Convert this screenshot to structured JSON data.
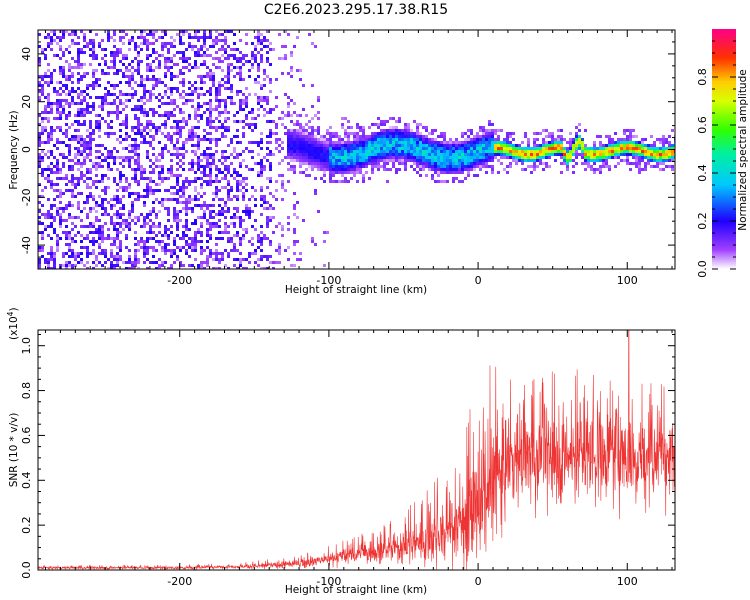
{
  "chart_data": [
    {
      "type": "heatmap",
      "title": "C2E6.2023.295.17.38.R15",
      "xlabel": "Height of straight line (km)",
      "ylabel": "Frequency (Hz)",
      "xlim": [
        -295,
        132
      ],
      "ylim": [
        -50,
        50
      ],
      "x_ticks": [
        -200,
        -100,
        0,
        100
      ],
      "x_tick_labels": [
        "-200",
        "-100",
        "0",
        "100"
      ],
      "y_ticks": [
        -40,
        -20,
        0,
        20,
        40
      ],
      "y_tick_labels": [
        "-40",
        "-20",
        "0",
        "20",
        "40"
      ],
      "colorbar": {
        "label": "Normalized spectral amplitude",
        "range": [
          0.0,
          1.0
        ],
        "ticks": [
          0.0,
          0.2,
          0.4,
          0.6,
          0.8
        ],
        "tick_labels": [
          "0.0",
          "0.2",
          "0.4",
          "0.6",
          "0.8"
        ],
        "colormap": "rainbow (white-violet-blue-cyan-green-yellow-red-magenta)"
      },
      "regions": [
        {
          "x_range": [
            -295,
            -140
          ],
          "frequency_range": [
            -50,
            50
          ],
          "amplitude": 0.1,
          "description": "broadband noise"
        },
        {
          "x_range": [
            -140,
            -100
          ],
          "frequency_range": [
            -50,
            50
          ],
          "amplitude": 0.05,
          "description": "sparse noise"
        },
        {
          "x_range": [
            -130,
            10
          ],
          "center_frequency": 0,
          "bandwidth": 10,
          "amplitude": 0.35
        },
        {
          "x_range": [
            10,
            132
          ],
          "center_frequency": 0,
          "bandwidth": 3,
          "amplitude": 0.9
        }
      ],
      "grid": false
    },
    {
      "type": "line",
      "xlabel": "Height of straight line (km)",
      "ylabel": "SNR (10 * v/v)",
      "y_scale_label": "(x10",
      "y_scale_exponent": "4",
      "y_scale_close": ")",
      "xlim": [
        -295,
        132
      ],
      "ylim": [
        0,
        1.07
      ],
      "x_ticks": [
        -200,
        -100,
        0,
        100
      ],
      "x_tick_labels": [
        "-200",
        "-100",
        "0",
        "100"
      ],
      "y_ticks": [
        0.0,
        0.2,
        0.4,
        0.6,
        0.8,
        1.0
      ],
      "y_tick_labels": [
        "0.0",
        "0.2",
        "0.4",
        "0.6",
        "0.8",
        "1.0"
      ],
      "series": [
        {
          "color": "#ee3333",
          "envelope": {
            "x": [
              -295,
              -200,
              -160,
              -140,
              -120,
              -100,
              -80,
              -60,
              -40,
              -20,
              0,
              10,
              15,
              20,
              30,
              50,
              70,
              90,
              110,
              132
            ],
            "mean": [
              0.01,
              0.01,
              0.015,
              0.02,
              0.03,
              0.05,
              0.07,
              0.09,
              0.12,
              0.18,
              0.28,
              0.35,
              0.42,
              0.5,
              0.5,
              0.52,
              0.5,
              0.52,
              0.5,
              0.5
            ],
            "peak": [
              0.02,
              0.025,
              0.03,
              0.05,
              0.07,
              0.11,
              0.16,
              0.22,
              0.33,
              0.5,
              0.8,
              0.96,
              0.9,
              0.85,
              0.85,
              0.92,
              0.9,
              0.88,
              0.85,
              0.82
            ]
          },
          "maximum": {
            "x": 101,
            "y": 1.07
          }
        }
      ],
      "grid": false
    }
  ]
}
